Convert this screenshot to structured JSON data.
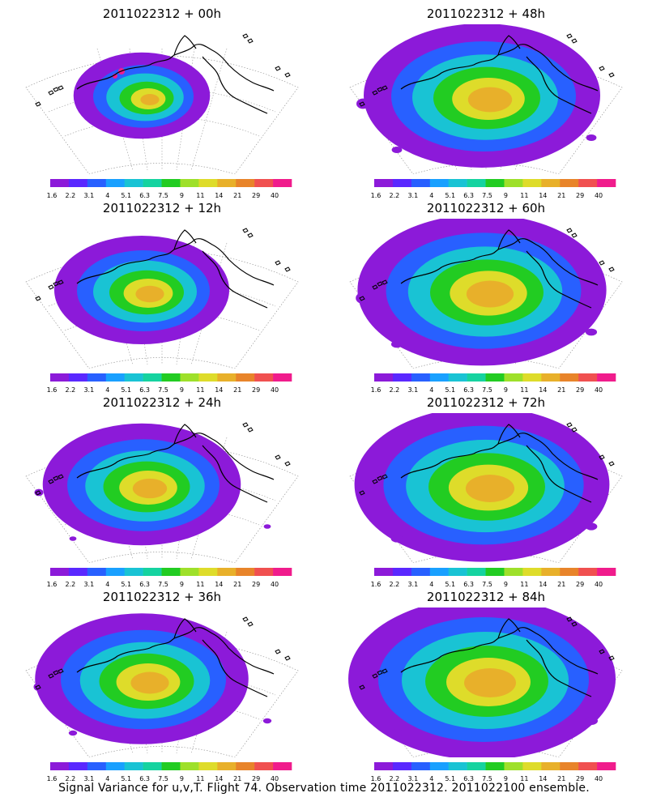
{
  "panels": [
    {
      "title": "2011022312 + 00h",
      "intensity": 0.15
    },
    {
      "title": "2011022312 + 48h",
      "intensity": 0.8
    },
    {
      "title": "2011022312 + 12h",
      "intensity": 0.4
    },
    {
      "title": "2011022312 + 60h",
      "intensity": 0.88
    },
    {
      "title": "2011022312 + 24h",
      "intensity": 0.55
    },
    {
      "title": "2011022312 + 72h",
      "intensity": 0.92
    },
    {
      "title": "2011022312 + 36h",
      "intensity": 0.65
    },
    {
      "title": "2011022312 + 84h",
      "intensity": 1.0
    }
  ],
  "colorbar": {
    "labels": [
      "1.6",
      "2.2",
      "3.1",
      "4",
      "5.1",
      "6.3",
      "7.5",
      "9",
      "11",
      "14",
      "21",
      "29",
      "40"
    ],
    "colors": [
      "#8c1ad9",
      "#5a28ff",
      "#2860ff",
      "#19a0ff",
      "#19c3d4",
      "#15d3a0",
      "#22cc22",
      "#9ee02a",
      "#dedc2a",
      "#e8b02a",
      "#e8842a",
      "#f05050",
      "#f01c8c"
    ]
  },
  "footer": "Signal Variance for u,v,T. Flight 74. Observation time 2011022312. 2011022100 ensemble."
}
